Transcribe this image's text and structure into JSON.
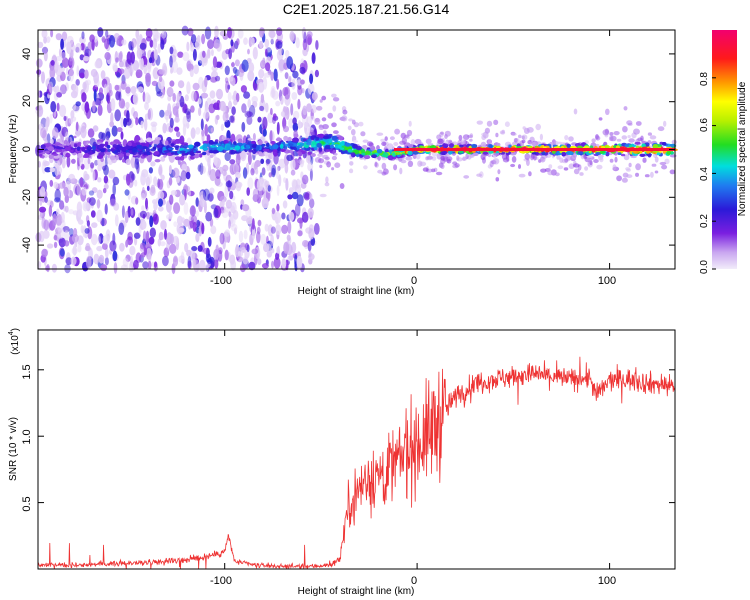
{
  "title": "C2E1.2025.187.21.56.G14",
  "charts": {
    "spectrogram": {
      "xlabel": "Height of straight line (km)",
      "ylabel": "Frequency (Hz)",
      "xticks": [
        "-100",
        "0",
        "100"
      ],
      "yticks": [
        "40",
        "20",
        "0",
        "-20",
        "-40"
      ]
    },
    "snr": {
      "xlabel": "Height of straight line (km)",
      "ylabel": "SNR (10 * v/v)",
      "scale_label": "(x10",
      "scale_exp": "4",
      "scale_close": ")",
      "xticks": [
        "-100",
        "0",
        "100"
      ],
      "yticks": [
        "1.5",
        "1.0",
        "0.5"
      ]
    },
    "colorbar": {
      "label": "Normalized spectral amplitude",
      "ticks": [
        "0.0",
        "0.2",
        "0.4",
        "0.6",
        "0.8"
      ]
    }
  },
  "chart_data": [
    {
      "type": "heatmap",
      "title": "C2E1.2025.187.21.56.G14",
      "xlabel": "Height of straight line (km)",
      "ylabel": "Frequency (Hz)",
      "xlim": [
        -197,
        134
      ],
      "ylim": [
        -50,
        50
      ],
      "x_ticks": [
        -100,
        0,
        100
      ],
      "y_ticks": [
        -40,
        -20,
        0,
        20,
        40
      ],
      "colorbar": {
        "label": "Normalized spectral amplitude",
        "range": [
          0,
          1
        ],
        "ticks": [
          0.0,
          0.2,
          0.4,
          0.6,
          0.8
        ],
        "colormap": "rainbow (purple-blue-cyan-green-yellow-orange-red-magenta)"
      },
      "noise_region_x": [
        -197,
        -52
      ],
      "signal_band": [
        {
          "x": -197,
          "center_hz": 0,
          "halfwidth_hz": 3,
          "amplitude": 0.12
        },
        {
          "x": -150,
          "center_hz": 0,
          "halfwidth_hz": 3,
          "amplitude": 0.2
        },
        {
          "x": -120,
          "center_hz": 0,
          "halfwidth_hz": 3,
          "amplitude": 0.3
        },
        {
          "x": -100,
          "center_hz": 1,
          "halfwidth_hz": 3,
          "amplitude": 0.35
        },
        {
          "x": -75,
          "center_hz": 1,
          "halfwidth_hz": 2,
          "amplitude": 0.25
        },
        {
          "x": -45,
          "center_hz": 3,
          "halfwidth_hz": 4,
          "amplitude": 0.5
        },
        {
          "x": -30,
          "center_hz": -1,
          "halfwidth_hz": 2,
          "amplitude": 0.6
        },
        {
          "x": -15,
          "center_hz": -2,
          "halfwidth_hz": 1.5,
          "amplitude": 0.6
        },
        {
          "x": 0,
          "center_hz": 0,
          "halfwidth_hz": 1.5,
          "amplitude": 0.95
        },
        {
          "x": 50,
          "center_hz": 0,
          "halfwidth_hz": 1.5,
          "amplitude": 0.98
        },
        {
          "x": 100,
          "center_hz": 0,
          "halfwidth_hz": 2,
          "amplitude": 0.95
        },
        {
          "x": 134,
          "center_hz": 0,
          "halfwidth_hz": 2.5,
          "amplitude": 0.9
        }
      ]
    },
    {
      "type": "line",
      "xlabel": "Height of straight line (km)",
      "ylabel": "SNR (10 * v/v)",
      "y_multiplier": 10000,
      "xlim": [
        -197,
        134
      ],
      "ylim": [
        0,
        1.8
      ],
      "x_ticks": [
        -100,
        0,
        100
      ],
      "y_ticks": [
        0.5,
        1.0,
        1.5
      ],
      "series": [
        {
          "color": "#ee3333",
          "x": [
            -197,
            -180,
            -160,
            -140,
            -120,
            -110,
            -105,
            -100,
            -98,
            -95,
            -85,
            -70,
            -55,
            -45,
            -40,
            -38,
            -35,
            -30,
            -25,
            -20,
            -15,
            -10,
            -5,
            0,
            5,
            10,
            15,
            20,
            25,
            30,
            40,
            50,
            60,
            70,
            80,
            90,
            93,
            100,
            110,
            120,
            134
          ],
          "y": [
            0.03,
            0.03,
            0.04,
            0.05,
            0.07,
            0.09,
            0.11,
            0.13,
            0.25,
            0.06,
            0.03,
            0.02,
            0.02,
            0.03,
            0.08,
            0.3,
            0.5,
            0.6,
            0.7,
            0.7,
            0.75,
            0.8,
            0.9,
            0.95,
            1.0,
            1.1,
            1.2,
            1.3,
            1.35,
            1.4,
            1.43,
            1.45,
            1.47,
            1.45,
            1.43,
            1.44,
            1.3,
            1.42,
            1.43,
            1.4,
            1.38
          ]
        }
      ]
    }
  ]
}
